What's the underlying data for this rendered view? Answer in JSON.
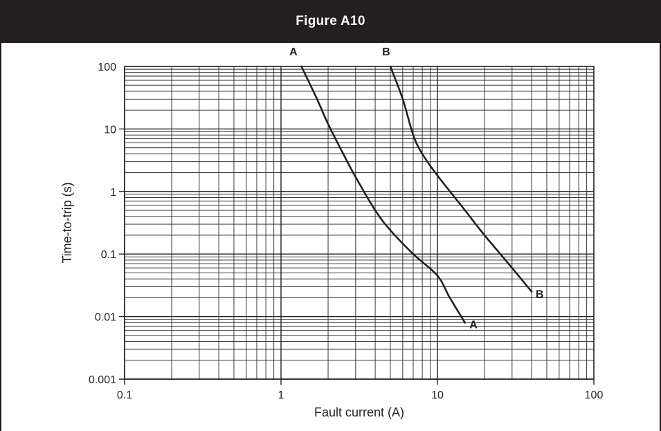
{
  "header": {
    "title": "Figure A10"
  },
  "chart_data": {
    "type": "line",
    "title": "Figure A10",
    "xlabel": "Fault current (A)",
    "ylabel": "Time-to-trip (s)",
    "xscale": "log",
    "yscale": "log",
    "xlim": [
      0.1,
      100
    ],
    "ylim": [
      0.001,
      100
    ],
    "grid": true,
    "x_ticks": [
      0.1,
      1,
      10,
      100
    ],
    "x_tick_labels": [
      "0.1",
      "1",
      "10",
      "100"
    ],
    "y_ticks": [
      0.001,
      0.01,
      0.1,
      1,
      10,
      100
    ],
    "y_tick_labels": [
      "0.001",
      "0.01",
      "0.1",
      "1",
      "10",
      "100"
    ],
    "series": [
      {
        "name": "A",
        "points": [
          [
            1.35,
            100
          ],
          [
            1.7,
            30
          ],
          [
            2.0,
            12
          ],
          [
            2.5,
            4
          ],
          [
            3.0,
            1.7
          ],
          [
            4.0,
            0.5
          ],
          [
            5.0,
            0.24
          ],
          [
            7.0,
            0.1
          ],
          [
            10.0,
            0.045
          ],
          [
            12.0,
            0.02
          ],
          [
            15.0,
            0.008
          ]
        ]
      },
      {
        "name": "B",
        "points": [
          [
            5.0,
            100
          ],
          [
            6.0,
            30
          ],
          [
            7.0,
            8
          ],
          [
            8.0,
            4
          ],
          [
            10.0,
            1.8
          ],
          [
            15.0,
            0.5
          ],
          [
            20.0,
            0.2
          ],
          [
            30.0,
            0.06
          ],
          [
            40.0,
            0.025
          ]
        ]
      }
    ],
    "annotations": [
      {
        "text": "A",
        "x": 1.2,
        "y": 150
      },
      {
        "text": "B",
        "x": 4.7,
        "y": 150
      },
      {
        "text": "A",
        "x": 17,
        "y": 0.0065
      },
      {
        "text": "B",
        "x": 45,
        "y": 0.02
      }
    ]
  }
}
